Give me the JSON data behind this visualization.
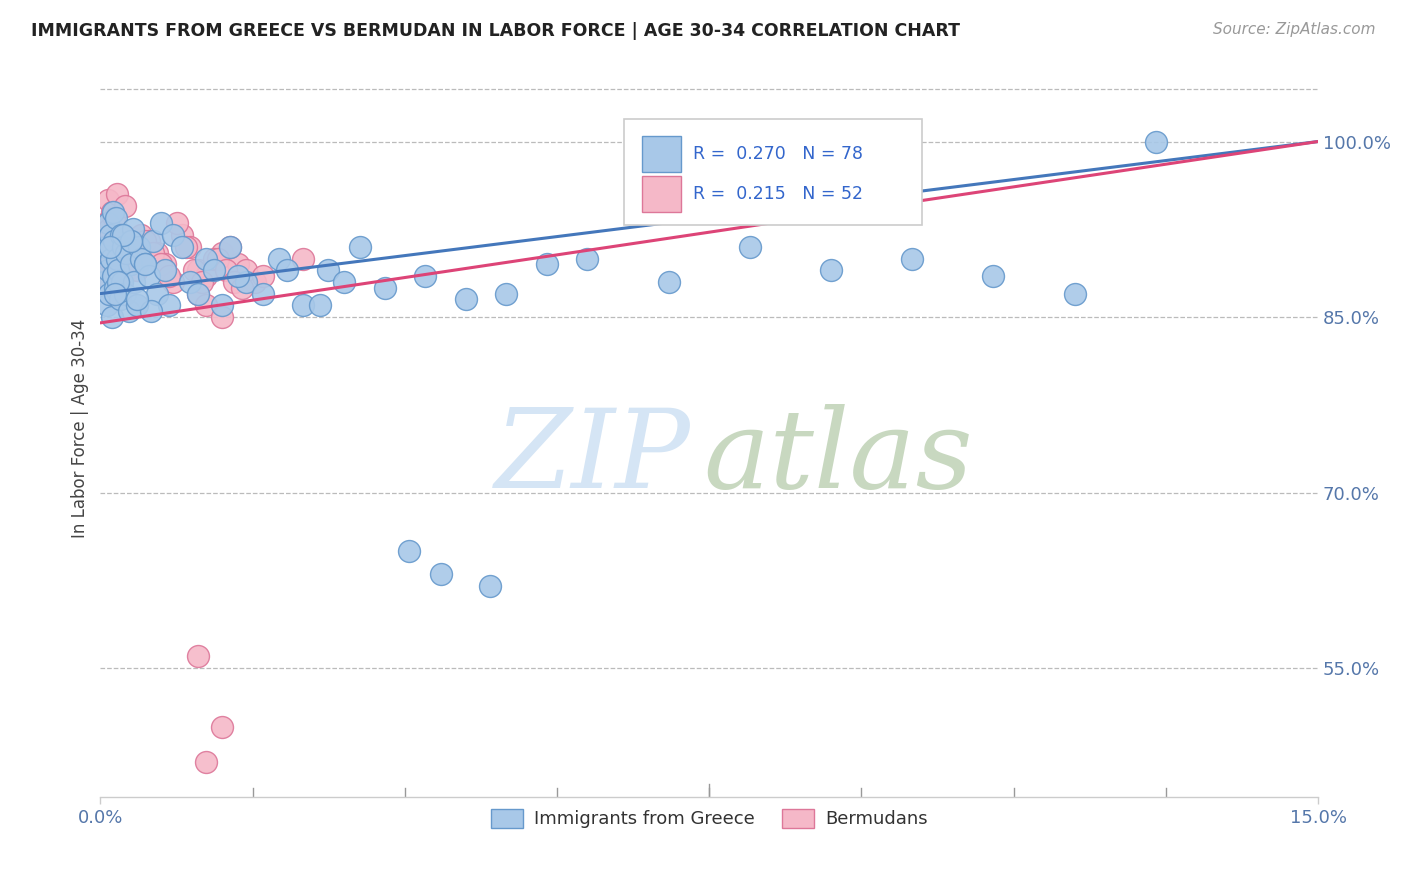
{
  "title": "IMMIGRANTS FROM GREECE VS BERMUDAN IN LABOR FORCE | AGE 30-34 CORRELATION CHART",
  "source": "Source: ZipAtlas.com",
  "ylabel": "In Labor Force | Age 30-34",
  "xlim": [
    0.0,
    15.0
  ],
  "ylim": [
    44.0,
    106.0
  ],
  "xticks": [
    0.0,
    15.0
  ],
  "xticklabels": [
    "0.0%",
    "15.0%"
  ],
  "yticks": [
    55.0,
    70.0,
    85.0,
    100.0
  ],
  "yticklabels": [
    "55.0%",
    "70.0%",
    "85.0%",
    "100.0%"
  ],
  "greece_color": "#a8c8e8",
  "greece_edge": "#6699cc",
  "bermuda_color": "#f5b8c8",
  "bermuda_edge": "#dd7799",
  "greece_line_color": "#4477bb",
  "bermuda_line_color": "#dd4477",
  "legend_text_color": "#3366cc",
  "watermark_zip_color": "#d5e5f5",
  "watermark_atlas_color": "#c8d8c0",
  "greece_x": [
    0.05,
    0.07,
    0.08,
    0.09,
    0.1,
    0.11,
    0.12,
    0.13,
    0.14,
    0.15,
    0.16,
    0.17,
    0.18,
    0.19,
    0.2,
    0.22,
    0.24,
    0.25,
    0.27,
    0.28,
    0.3,
    0.32,
    0.35,
    0.38,
    0.4,
    0.42,
    0.45,
    0.48,
    0.5,
    0.55,
    0.6,
    0.65,
    0.7,
    0.75,
    0.8,
    0.85,
    0.9,
    1.0,
    1.1,
    1.2,
    1.3,
    1.4,
    1.5,
    1.6,
    1.8,
    2.0,
    2.2,
    2.5,
    2.8,
    3.0,
    3.2,
    3.5,
    4.0,
    4.5,
    5.0,
    5.5,
    6.0,
    7.0,
    8.0,
    9.0,
    10.0,
    11.0,
    12.0,
    13.0,
    3.8,
    4.2,
    4.8,
    2.3,
    2.7,
    1.7,
    0.55,
    0.62,
    0.45,
    0.38,
    0.28,
    0.22,
    0.18,
    0.12
  ],
  "greece_y": [
    88.0,
    91.0,
    86.0,
    93.0,
    89.0,
    87.0,
    92.0,
    90.0,
    85.0,
    94.0,
    88.5,
    91.5,
    87.5,
    93.5,
    90.0,
    89.0,
    86.5,
    92.0,
    88.0,
    91.0,
    87.0,
    90.5,
    85.5,
    89.5,
    92.5,
    88.0,
    86.0,
    91.0,
    90.0,
    89.5,
    88.5,
    91.5,
    87.0,
    93.0,
    89.0,
    86.0,
    92.0,
    91.0,
    88.0,
    87.0,
    90.0,
    89.0,
    86.0,
    91.0,
    88.0,
    87.0,
    90.0,
    86.0,
    89.0,
    88.0,
    91.0,
    87.5,
    88.5,
    86.5,
    87.0,
    89.5,
    90.0,
    88.0,
    91.0,
    89.0,
    90.0,
    88.5,
    87.0,
    100.0,
    65.0,
    63.0,
    62.0,
    89.0,
    86.0,
    88.5,
    89.5,
    85.5,
    86.5,
    91.5,
    92.0,
    88.0,
    87.0,
    91.0
  ],
  "bermuda_x": [
    0.05,
    0.07,
    0.08,
    0.09,
    0.1,
    0.11,
    0.12,
    0.14,
    0.15,
    0.17,
    0.18,
    0.2,
    0.22,
    0.25,
    0.28,
    0.3,
    0.35,
    0.4,
    0.45,
    0.5,
    0.6,
    0.7,
    0.8,
    0.9,
    1.0,
    1.1,
    1.2,
    1.3,
    1.5,
    1.7,
    1.9,
    1.2,
    1.4,
    1.6,
    1.8,
    2.0,
    2.5,
    1.3,
    1.5,
    0.55,
    0.65,
    0.75,
    0.85,
    0.95,
    1.05,
    1.15,
    1.25,
    1.45,
    1.55,
    1.65,
    1.75,
    1.3
  ],
  "bermuda_y": [
    91.0,
    93.0,
    89.5,
    95.0,
    90.0,
    92.5,
    88.0,
    94.0,
    87.0,
    93.5,
    91.5,
    95.5,
    90.0,
    92.0,
    88.5,
    94.5,
    91.0,
    90.0,
    89.0,
    92.0,
    91.5,
    90.5,
    89.5,
    88.0,
    92.0,
    91.0,
    89.0,
    88.5,
    90.5,
    89.5,
    88.0,
    87.0,
    90.0,
    91.0,
    89.0,
    88.5,
    90.0,
    86.0,
    85.0,
    91.5,
    90.5,
    89.5,
    88.5,
    93.0,
    91.0,
    89.0,
    88.0,
    90.0,
    89.0,
    88.0,
    87.5,
    47.0
  ]
}
